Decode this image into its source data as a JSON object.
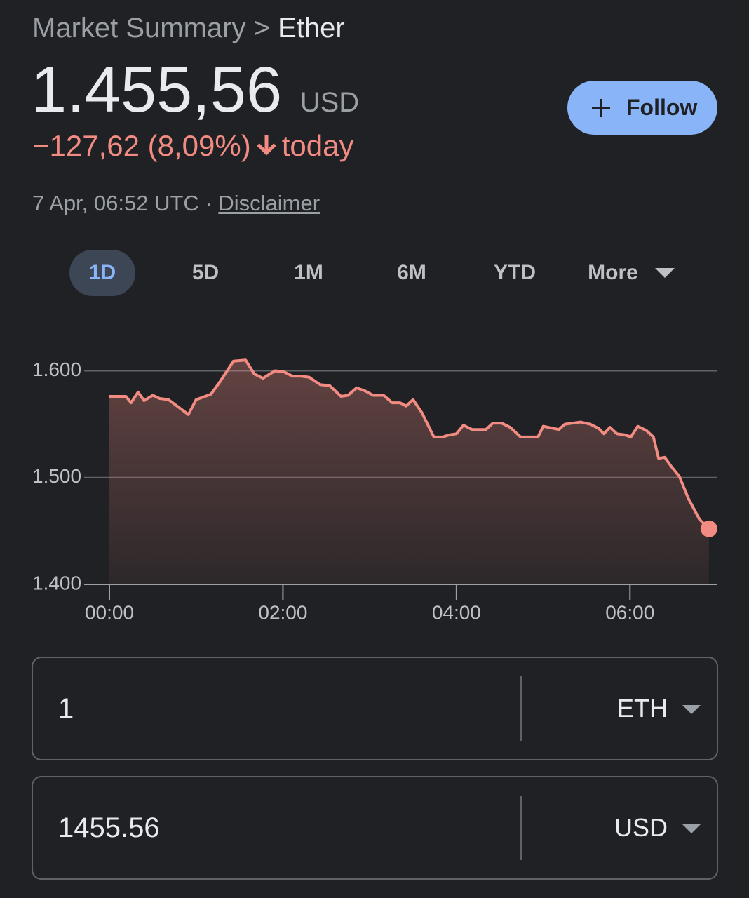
{
  "header": {
    "breadcrumb": "Market Summary",
    "separator": ">",
    "title": "Ether"
  },
  "price": {
    "value": "1.455,56",
    "currency": "USD",
    "change": "−127,62 (8,09%)",
    "change_suffix": "today"
  },
  "timestamp": "7 Apr, 06:52 UTC ·",
  "disclaimer": "Disclaimer",
  "follow_button": "Follow",
  "ranges": [
    "1D",
    "5D",
    "1M",
    "6M",
    "YTD",
    "More"
  ],
  "selected_range": 0,
  "chart_data": {
    "type": "line",
    "color": "#f28b82",
    "grid": true,
    "x": [
      0,
      0.1,
      0.19,
      0.25,
      0.33,
      0.4,
      0.5,
      0.58,
      0.68,
      0.78,
      0.91,
      1.0,
      1.17,
      1.26,
      1.43,
      1.57,
      1.67,
      1.77,
      1.91,
      2.01,
      2.11,
      2.2,
      2.3,
      2.43,
      2.54,
      2.67,
      2.75,
      2.85,
      2.95,
      3.04,
      3.16,
      3.26,
      3.35,
      3.42,
      3.5,
      3.6,
      3.74,
      3.84,
      3.92,
      4.0,
      4.08,
      4.18,
      4.34,
      4.42,
      4.52,
      4.62,
      4.74,
      4.94,
      5.0,
      5.12,
      5.18,
      5.25,
      5.43,
      5.54,
      5.64,
      5.7,
      5.77,
      5.85,
      5.94,
      6.01,
      6.09,
      6.19,
      6.27,
      6.33,
      6.4,
      6.48,
      6.57,
      6.67,
      6.8,
      6.91
    ],
    "values": [
      1576,
      1576,
      1576,
      1570,
      1580,
      1572,
      1577,
      1574,
      1573,
      1567,
      1559,
      1573,
      1578,
      1588,
      1609,
      1610,
      1597,
      1593,
      1600,
      1599,
      1595,
      1595,
      1594,
      1587,
      1586,
      1576,
      1577,
      1584,
      1581,
      1577,
      1577,
      1570,
      1570,
      1567,
      1573,
      1561,
      1538,
      1538,
      1540,
      1541,
      1549,
      1545,
      1545,
      1551,
      1551,
      1547,
      1538,
      1538,
      1548,
      1546,
      1545,
      1550,
      1552,
      1550,
      1546,
      1541,
      1547,
      1541,
      1540,
      1538,
      1548,
      1544,
      1538,
      1518,
      1519,
      1510,
      1501,
      1481,
      1461,
      1452
    ],
    "xlim": [
      0,
      7
    ],
    "ylim": [
      1400,
      1620
    ],
    "xticks": [
      {
        "value": 0,
        "label": "00:00"
      },
      {
        "value": 2,
        "label": "02:00"
      },
      {
        "value": 4,
        "label": "04:00"
      },
      {
        "value": 6,
        "label": "06:00"
      }
    ],
    "yticks": [
      {
        "value": 1400,
        "label": "1.400"
      },
      {
        "value": 1500,
        "label": "1.500"
      },
      {
        "value": 1600,
        "label": "1.600"
      }
    ]
  },
  "converter": [
    {
      "amount": "1",
      "currency": "ETH"
    },
    {
      "amount": "1455.56",
      "currency": "USD"
    }
  ]
}
